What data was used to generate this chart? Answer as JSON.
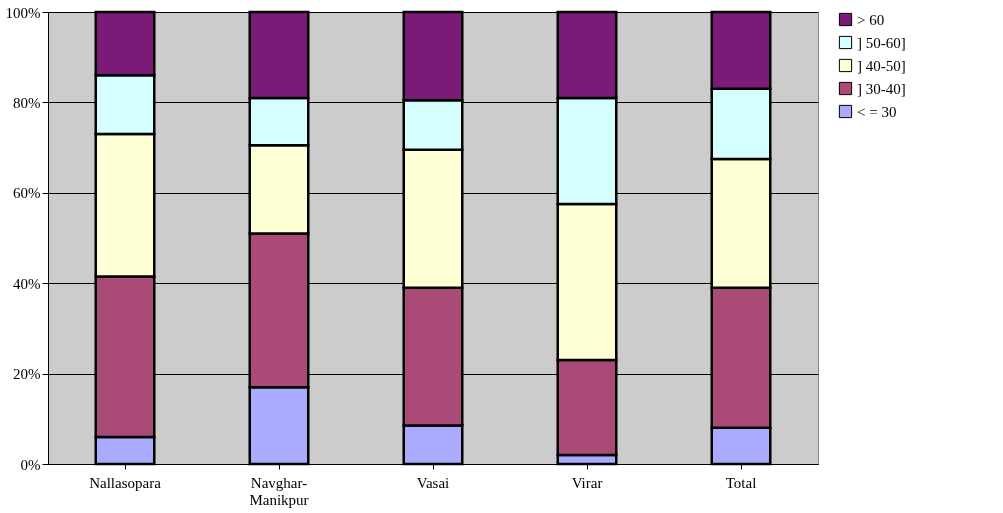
{
  "chart_data": {
    "type": "bar",
    "stacked": true,
    "categories": [
      "Nallasopara",
      "Navghar-Manikpur",
      "Vasai",
      "Virar",
      "Total"
    ],
    "series": [
      {
        "name": "< = 30",
        "color": "#aaaaff",
        "values": [
          6,
          17,
          8.5,
          2,
          8
        ]
      },
      {
        "name": "] 30-40]",
        "color": "#aa4a77",
        "values": [
          35.5,
          34,
          30.5,
          21,
          31
        ]
      },
      {
        "name": "] 40-50]",
        "color": "#ffffd5",
        "values": [
          31.5,
          19.5,
          30.5,
          34.5,
          28.5
        ]
      },
      {
        "name": "] 50-60]",
        "color": "#d5ffff",
        "values": [
          13,
          10.5,
          11,
          23.5,
          15.5
        ]
      },
      {
        "name": "> 60",
        "color": "#7b1a77",
        "values": [
          14,
          19,
          19.5,
          19,
          17
        ]
      }
    ],
    "ylim": [
      0,
      100
    ],
    "yticks": [
      {
        "value": 0,
        "label": "0%"
      },
      {
        "value": 20,
        "label": "20%"
      },
      {
        "value": 40,
        "label": "40%"
      },
      {
        "value": 60,
        "label": "60%"
      },
      {
        "value": 80,
        "label": "80%"
      },
      {
        "value": 100,
        "label": "100%"
      }
    ],
    "grid": "y",
    "legend": "right"
  }
}
